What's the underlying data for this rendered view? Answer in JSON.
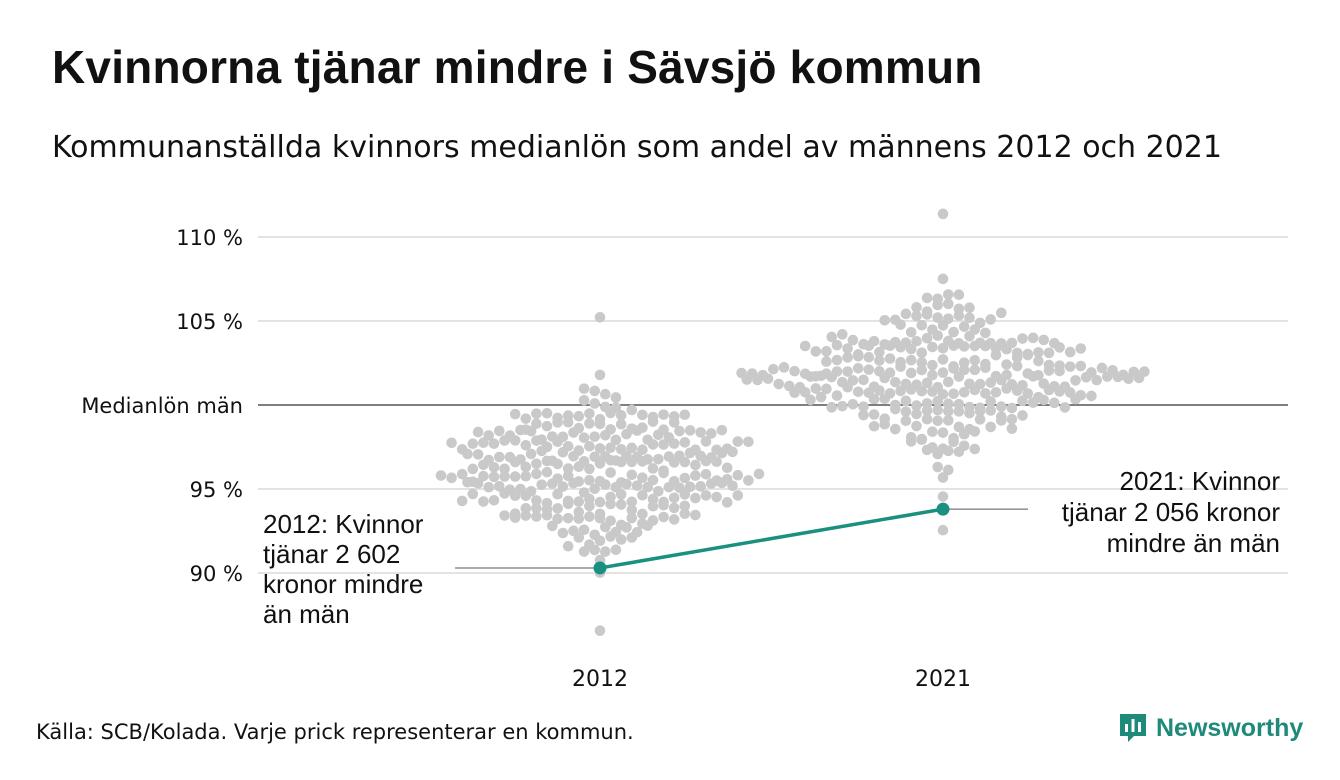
{
  "title": "Kvinnorna tjänar mindre i Sävsjö kommun",
  "subtitle": "Kommunanställda kvinnors medianlön som andel av männens 2012 och 2021",
  "source": "Källa: SCB/Kolada. Varje prick representerar en kommun.",
  "brand": {
    "name": "Newsworthy",
    "icon": "newsworthy-logo-icon",
    "color": "#1e8a7a"
  },
  "chart_data": {
    "type": "scatter",
    "ylim": [
      86,
      112
    ],
    "y_ticks": [
      {
        "value": 90,
        "label": "90 %"
      },
      {
        "value": 95,
        "label": "95 %"
      },
      {
        "value": 100,
        "label": "Medianlön män"
      },
      {
        "value": 105,
        "label": "105 %"
      },
      {
        "value": 110,
        "label": "110 %"
      }
    ],
    "categories": [
      "2012",
      "2021"
    ],
    "distribution": [
      {
        "category": "2012",
        "median": 96.0,
        "spread": 2.3,
        "min": 86.6,
        "max": 105.2,
        "count": 290
      },
      {
        "category": "2021",
        "median": 101.7,
        "spread": 2.1,
        "min": 92.6,
        "max": 111.4,
        "count": 290
      }
    ],
    "highlight": {
      "name": "Sävsjö",
      "color": "#1a9080",
      "points": [
        {
          "category": "2012",
          "value": 90.3
        },
        {
          "category": "2021",
          "value": 93.8
        }
      ]
    },
    "annotations": [
      {
        "category": "2012",
        "lines": [
          "2012: Kvinnor",
          "tjänar 2 602",
          "kronor mindre",
          "än män"
        ]
      },
      {
        "category": "2021",
        "lines": [
          "2021: Kvinnor",
          "tjänar 2 056 kronor",
          "mindre än män"
        ]
      }
    ],
    "colors": {
      "dots": "#c9c9c9",
      "grid": "#e3e3e3",
      "reference": "#333333"
    }
  }
}
